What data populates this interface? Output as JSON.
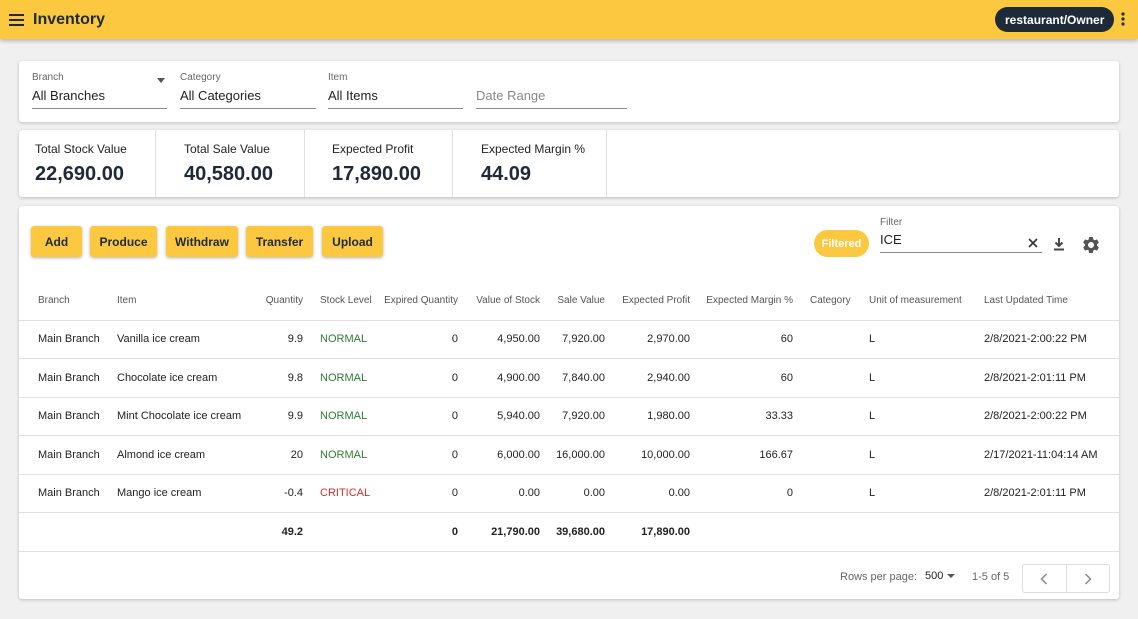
{
  "app": {
    "title": "Inventory",
    "account_label": "restaurant/Owner",
    "accent_color": "#fcc83f",
    "dark_color": "#1e2a38"
  },
  "filters": {
    "branch": {
      "label": "Branch",
      "value": "All Branches"
    },
    "category": {
      "label": "Category",
      "value": "All Categories"
    },
    "item": {
      "label": "Item",
      "value": "All Items"
    },
    "date_range": {
      "placeholder": "Date Range"
    }
  },
  "summary": [
    {
      "label": "Total Stock Value",
      "value": "22,690.00"
    },
    {
      "label": "Total Sale Value",
      "value": "40,580.00"
    },
    {
      "label": "Expected Profit",
      "value": "17,890.00"
    },
    {
      "label": "Expected Margin %",
      "value": "44.09"
    }
  ],
  "toolbar": {
    "add": "Add",
    "produce": "Produce",
    "withdraw": "Withdraw",
    "transfer": "Transfer",
    "upload": "Upload",
    "filtered_badge": "Filtered",
    "filter_label": "Filter",
    "filter_value": "ICE"
  },
  "table": {
    "headers": {
      "branch": "Branch",
      "item": "Item",
      "quantity": "Quantity",
      "stock_level": "Stock Level",
      "expired_quantity": "Expired Quantity",
      "value_of_stock": "Value of Stock",
      "sale_value": "Sale Value",
      "expected_profit": "Expected Profit",
      "expected_margin": "Expected Margin %",
      "category": "Category",
      "unit": "Unit of measurement",
      "last_updated": "Last Updated Time"
    },
    "rows": [
      {
        "branch": "Main Branch",
        "item": "Vanilla ice cream",
        "quantity": "9.9",
        "stock_level": "NORMAL",
        "expired_quantity": "0",
        "value_of_stock": "4,950.00",
        "sale_value": "7,920.00",
        "expected_profit": "2,970.00",
        "expected_margin": "60",
        "category": "",
        "unit": "L",
        "last_updated": "2/8/2021-2:00:22 PM"
      },
      {
        "branch": "Main Branch",
        "item": "Chocolate ice cream",
        "quantity": "9.8",
        "stock_level": "NORMAL",
        "expired_quantity": "0",
        "value_of_stock": "4,900.00",
        "sale_value": "7,840.00",
        "expected_profit": "2,940.00",
        "expected_margin": "60",
        "category": "",
        "unit": "L",
        "last_updated": "2/8/2021-2:01:11 PM"
      },
      {
        "branch": "Main Branch",
        "item": "Mint Chocolate ice cream",
        "quantity": "9.9",
        "stock_level": "NORMAL",
        "expired_quantity": "0",
        "value_of_stock": "5,940.00",
        "sale_value": "7,920.00",
        "expected_profit": "1,980.00",
        "expected_margin": "33.33",
        "category": "",
        "unit": "L",
        "last_updated": "2/8/2021-2:00:22 PM"
      },
      {
        "branch": "Main Branch",
        "item": "Almond ice cream",
        "quantity": "20",
        "stock_level": "NORMAL",
        "expired_quantity": "0",
        "value_of_stock": "6,000.00",
        "sale_value": "16,000.00",
        "expected_profit": "10,000.00",
        "expected_margin": "166.67",
        "category": "",
        "unit": "L",
        "last_updated": "2/17/2021-11:04:14 AM"
      },
      {
        "branch": "Main Branch",
        "item": "Mango ice cream",
        "quantity": "-0.4",
        "stock_level": "CRITICAL",
        "expired_quantity": "0",
        "value_of_stock": "0.00",
        "sale_value": "0.00",
        "expected_profit": "0.00",
        "expected_margin": "0",
        "category": "",
        "unit": "L",
        "last_updated": "2/8/2021-2:01:11 PM"
      }
    ],
    "totals": {
      "quantity": "49.2",
      "expired_quantity": "0",
      "value_of_stock": "21,790.00",
      "sale_value": "39,680.00",
      "expected_profit": "17,890.00"
    }
  },
  "pagination": {
    "rows_per_page_label": "Rows per page:",
    "rows_per_page": "500",
    "range": "1-5 of 5"
  },
  "icons": {
    "menu": "menu-icon",
    "more": "more-vert-icon",
    "clear": "close-icon",
    "download": "download-icon",
    "settings": "gear-icon",
    "prev": "chevron-left-icon",
    "next": "chevron-right-icon"
  }
}
